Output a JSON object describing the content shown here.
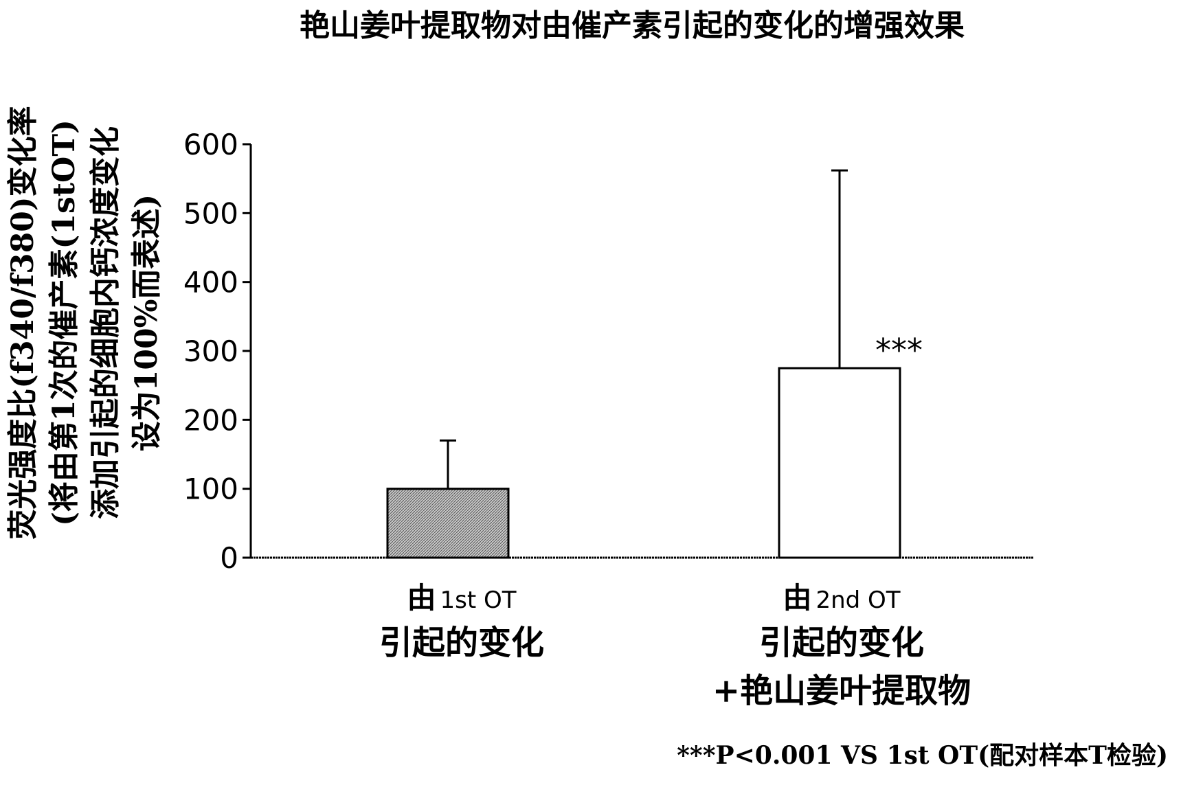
{
  "chart_data": {
    "type": "bar",
    "title": "艳山姜叶提取物对由催产素引起的变化的增强效果",
    "ylabel_lines": [
      "荧光强度比(f340/f380)变化率",
      "(将由第1次的催产素(1stOT)",
      "添加引起的细胞内钙浓度变化",
      "设为100%而表述)"
    ],
    "categories": [
      {
        "label_prefix": "由",
        "label_ot": "1st OT",
        "lines": [
          "引起的变化"
        ]
      },
      {
        "label_prefix": "由",
        "label_ot": "2nd OT",
        "lines": [
          "引起的变化",
          "+艳山姜叶提取物"
        ]
      }
    ],
    "values": [
      100,
      275
    ],
    "error_upper": [
      170,
      562
    ],
    "fills": [
      "hatched-gray",
      "white"
    ],
    "significance": [
      "",
      "***"
    ],
    "ylim": [
      0,
      600
    ],
    "yticks": [
      0,
      100,
      200,
      300,
      400,
      500,
      600
    ],
    "grid": false,
    "footnote": "***P<0.001 VS 1st OT(配对样本T检验)"
  }
}
